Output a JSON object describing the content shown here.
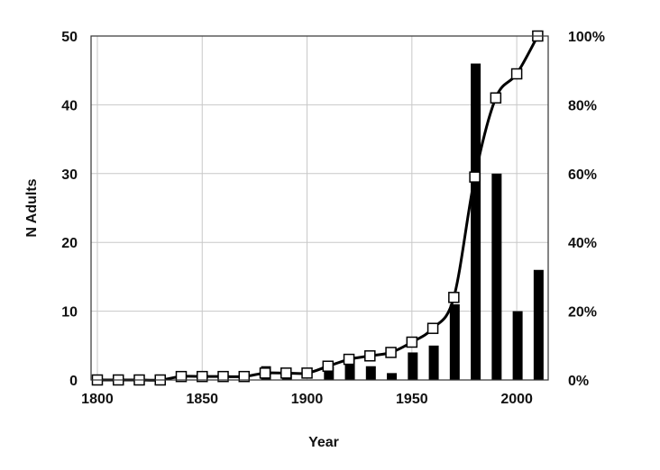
{
  "chart_data": {
    "type": "bar",
    "xlabel": "Year",
    "ylabel": "N Adults",
    "xlim": [
      1797,
      2015
    ],
    "ylim": [
      0,
      50
    ],
    "y2lim": [
      0,
      100
    ],
    "x_ticks": [
      "1800",
      "1850",
      "1900",
      "1950",
      "2000"
    ],
    "y_ticks": [
      "0",
      "10",
      "20",
      "30",
      "40",
      "50"
    ],
    "y2_ticks": [
      "0%",
      "20%",
      "40%",
      "60%",
      "80%",
      "100%"
    ],
    "grid": true,
    "series": [
      {
        "type": "bar",
        "axis": "left",
        "color": "#000000",
        "x": [
          1880,
          1890,
          1910,
          1920,
          1930,
          1940,
          1950,
          1960,
          1970,
          1980,
          1990,
          2000,
          2010
        ],
        "values": [
          2,
          1,
          2,
          3,
          2,
          1,
          4,
          5,
          11,
          46,
          30,
          10,
          16
        ]
      },
      {
        "type": "line",
        "axis": "right",
        "marker": "open-square",
        "color": "#000000",
        "x": [
          1800,
          1810,
          1820,
          1830,
          1840,
          1850,
          1860,
          1870,
          1880,
          1890,
          1900,
          1910,
          1920,
          1930,
          1940,
          1950,
          1960,
          1970,
          1980,
          1990,
          2000,
          2010
        ],
        "values": [
          0,
          0,
          0,
          0,
          1,
          1,
          1,
          1,
          2,
          2,
          2,
          4,
          6,
          7,
          8,
          11,
          15,
          24,
          59,
          82,
          89,
          100
        ]
      }
    ]
  }
}
